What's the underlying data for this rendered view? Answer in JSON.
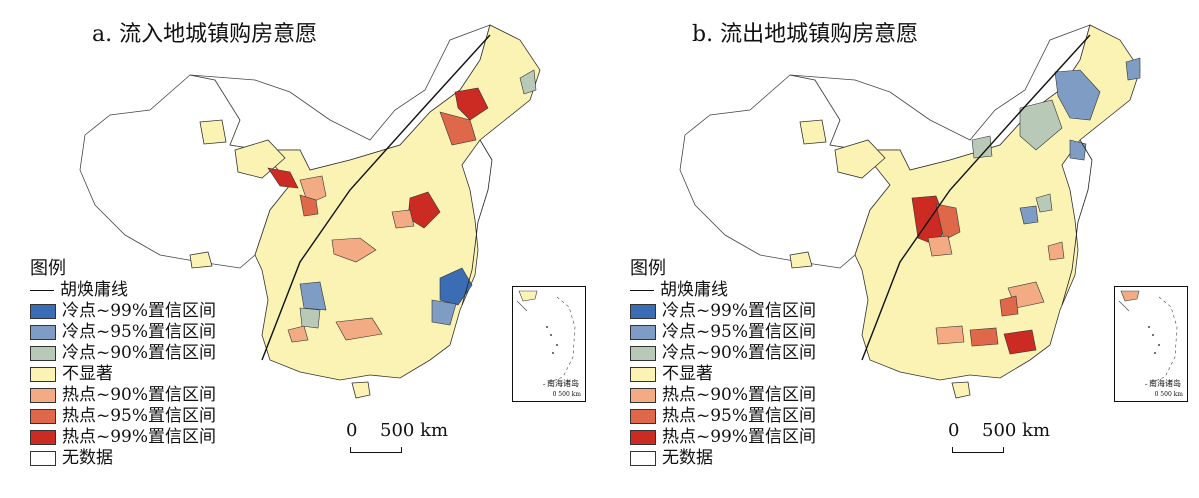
{
  "panel_a": {
    "title": "a. 流入地城镇购房意愿"
  },
  "panel_b": {
    "title": "b. 流出地城镇购房意愿"
  },
  "legend": {
    "title": "图例",
    "items": [
      {
        "label": "胡焕庸线",
        "kind": "line",
        "color": "#111111"
      },
      {
        "label": "冷点~99%置信区间",
        "kind": "fill",
        "color": "#3a6db4"
      },
      {
        "label": "冷点~95%置信区间",
        "kind": "fill",
        "color": "#7f9dc4"
      },
      {
        "label": "冷点~90%置信区间",
        "kind": "fill",
        "color": "#b9c9b8"
      },
      {
        "label": "不显著",
        "kind": "fill",
        "color": "#fbf3b4"
      },
      {
        "label": "热点~90%置信区间",
        "kind": "fill",
        "color": "#f2ab82"
      },
      {
        "label": "热点~95%置信区间",
        "kind": "fill",
        "color": "#e0684a"
      },
      {
        "label": "热点~99%置信区间",
        "kind": "fill",
        "color": "#cc2b23"
      },
      {
        "label": "无数据",
        "kind": "fill",
        "color": "#ffffff"
      }
    ]
  },
  "inset": {
    "label": "南海诸岛",
    "scale": "0   500 km"
  },
  "scalebar": {
    "zero": "0",
    "length": "500 km"
  }
}
